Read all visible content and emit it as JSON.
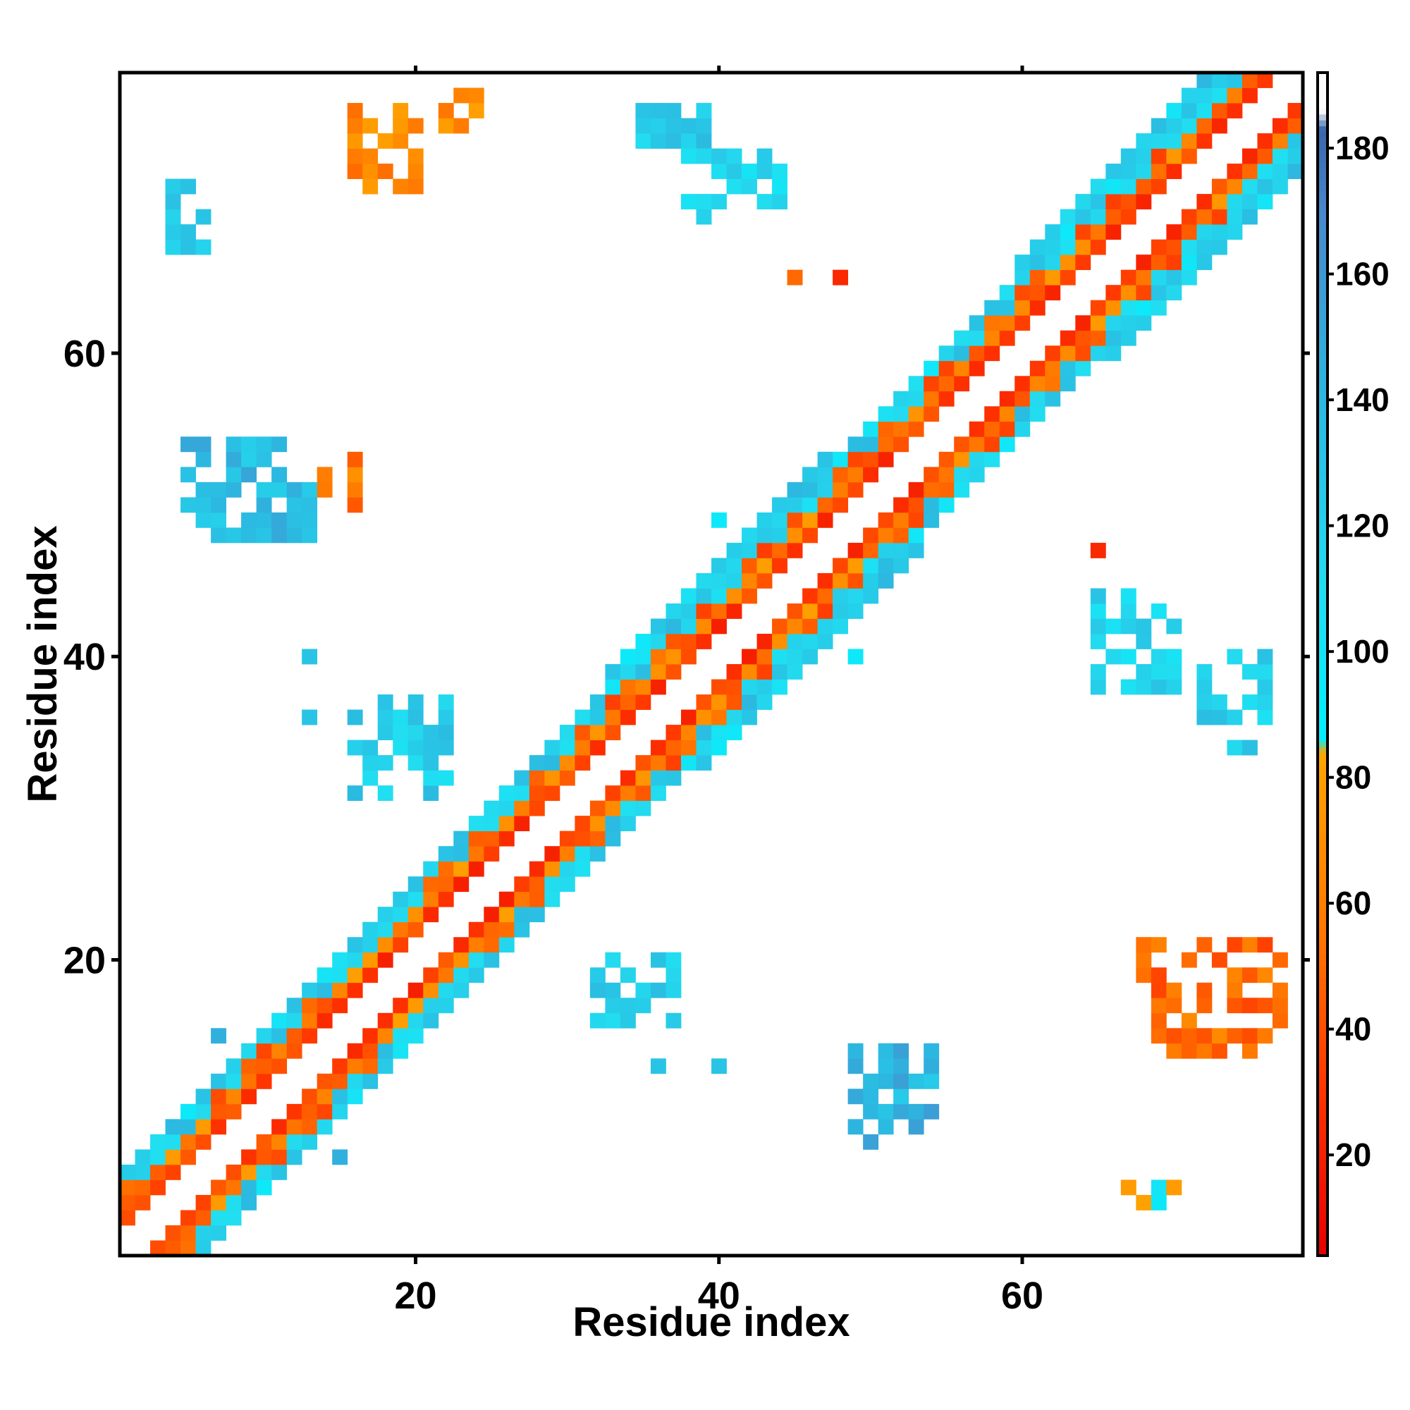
{
  "chart_data": {
    "type": "heatmap",
    "title": "",
    "xlabel": "Residue index",
    "ylabel": "Residue index",
    "xlim": [
      0.5,
      78.5
    ],
    "ylim": [
      0.5,
      78.5
    ],
    "x_ticks": [
      20,
      40,
      60
    ],
    "y_ticks": [
      20,
      40,
      60
    ],
    "x_tick_labels": [
      "20",
      "40",
      "60"
    ],
    "y_tick_labels": [
      "20",
      "40",
      "60"
    ],
    "grid": false,
    "legend": "right",
    "colorbar": {
      "min": 4,
      "max": 192,
      "ticks": [
        20,
        40,
        60,
        80,
        100,
        120,
        140,
        160,
        180
      ],
      "tick_labels": [
        "20",
        "40",
        "60",
        "80",
        "100",
        "120",
        "140",
        "160",
        "180"
      ],
      "stops": [
        {
          "value": 4,
          "color": "#e60000"
        },
        {
          "value": 30,
          "color": "#ff3300"
        },
        {
          "value": 55,
          "color": "#ff7700"
        },
        {
          "value": 84,
          "color": "#ffa500"
        },
        {
          "value": 86,
          "color": "#00f0ff"
        },
        {
          "value": 110,
          "color": "#22ddf0"
        },
        {
          "value": 140,
          "color": "#2cb8e0"
        },
        {
          "value": 170,
          "color": "#4888cc"
        },
        {
          "value": 183,
          "color": "#3a66aa"
        },
        {
          "value": 186,
          "color": "#ffffff"
        },
        {
          "value": 192,
          "color": "#ffffff"
        }
      ]
    },
    "diagonal_band": [
      {
        "from": 1,
        "to": 24,
        "width": 5
      },
      {
        "from": 25,
        "to": 33,
        "width": 5
      },
      {
        "from": 33,
        "to": 47,
        "width": 6
      },
      {
        "from": 47,
        "to": 60,
        "width": 5
      },
      {
        "from": 60,
        "to": 78,
        "width": 6
      }
    ],
    "clusters": [
      {
        "x": [
          5,
          13
        ],
        "y": [
          48,
          54
        ],
        "value": 135
      },
      {
        "x": [
          14,
          16
        ],
        "y": [
          50,
          53
        ],
        "value": 55
      },
      {
        "x": [
          4,
          6
        ],
        "y": [
          67,
          71
        ],
        "value": 120
      },
      {
        "x": [
          15,
          20
        ],
        "y": [
          71,
          76
        ],
        "value": 65
      },
      {
        "x": [
          22,
          24
        ],
        "y": [
          75,
          77
        ],
        "value": 70
      },
      {
        "x": [
          35,
          39
        ],
        "y": [
          74,
          76
        ],
        "value": 120
      },
      {
        "x": [
          38,
          44
        ],
        "y": [
          69,
          73
        ],
        "value": 110
      },
      {
        "x": [
          49,
          54
        ],
        "y": [
          8,
          14
        ],
        "value": 140
      },
      {
        "x": [
          65,
          70
        ],
        "y": [
          38,
          44
        ],
        "value": 115
      },
      {
        "x": [
          72,
          76
        ],
        "y": [
          34,
          40
        ],
        "value": 120
      },
      {
        "x": [
          68,
          77
        ],
        "y": [
          14,
          21
        ],
        "value": 50
      },
      {
        "x": [
          66,
          70
        ],
        "y": [
          4,
          5
        ],
        "value": 90
      },
      {
        "x": [
          16,
          22
        ],
        "y": [
          31,
          37
        ],
        "value": 120
      },
      {
        "x": [
          32,
          37
        ],
        "y": [
          16,
          20
        ],
        "value": 120
      }
    ],
    "scattered_cells": [
      {
        "x": 65,
        "y": 47,
        "value": 25
      },
      {
        "x": 48,
        "y": 65,
        "value": 25
      },
      {
        "x": 45,
        "y": 65,
        "value": 50
      },
      {
        "x": 49,
        "y": 40,
        "value": 95
      },
      {
        "x": 40,
        "y": 49,
        "value": 95
      },
      {
        "x": 7,
        "y": 15,
        "value": 145
      },
      {
        "x": 15,
        "y": 7,
        "value": 145
      },
      {
        "x": 36,
        "y": 13,
        "value": 130
      },
      {
        "x": 40,
        "y": 13,
        "value": 130
      },
      {
        "x": 13,
        "y": 40,
        "value": 130
      },
      {
        "x": 13,
        "y": 36,
        "value": 130
      }
    ]
  }
}
